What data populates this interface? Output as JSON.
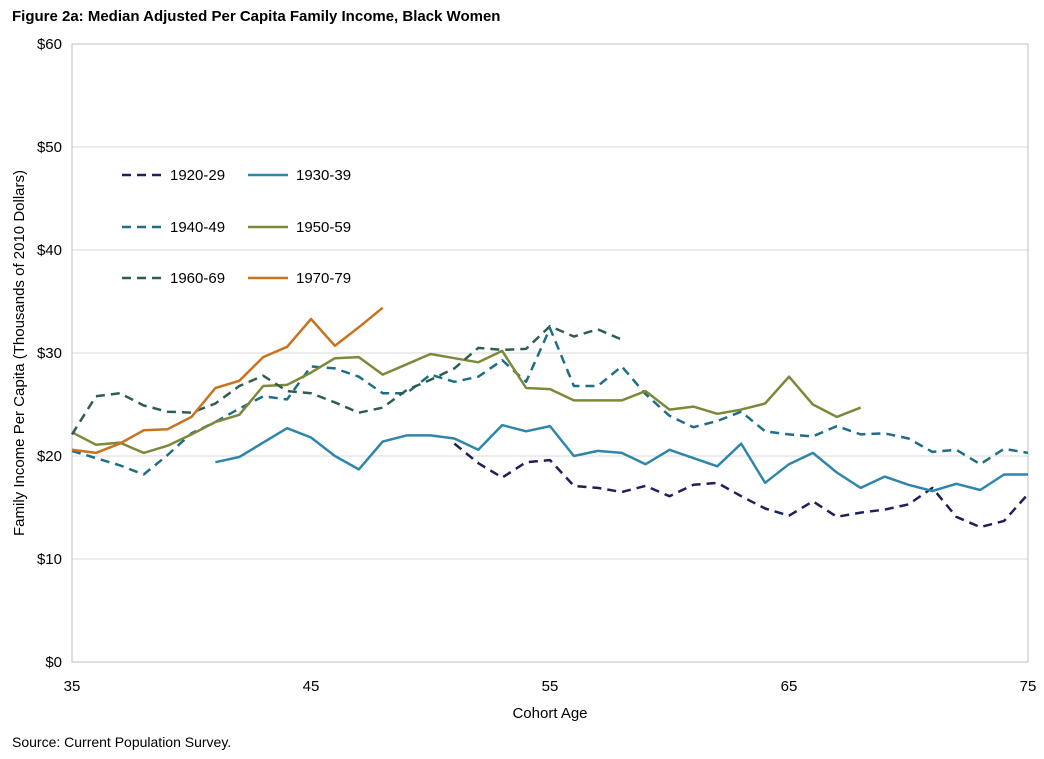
{
  "title": "Figure 2a: Median Adjusted Per Capita Family Income, Black Women",
  "source": "Source: Current Population Survey.",
  "chart_data": {
    "type": "line",
    "xlabel": "Cohort Age",
    "ylabel": "Family Income Per Capita (Thousands of 2010 Dollars)",
    "xlim": [
      35,
      75
    ],
    "ylim": [
      0,
      60
    ],
    "xticks": [
      35,
      45,
      55,
      65,
      75
    ],
    "xtick_labels": [
      "35",
      "45",
      "55",
      "65",
      "75"
    ],
    "yticks": [
      0,
      10,
      20,
      30,
      40,
      50,
      60
    ],
    "ytick_labels": [
      "$0",
      "$10",
      "$20",
      "$30",
      "$40",
      "$50",
      "$60"
    ],
    "grid": "horizontal",
    "legend_position": "top-left",
    "series": [
      {
        "name": "1920-29",
        "color": "#1f1f5c",
        "dash": "dashed",
        "x": [
          51,
          52,
          53,
          54,
          55,
          56,
          57,
          58,
          59,
          60,
          61,
          62,
          63,
          64,
          65,
          66,
          67,
          68,
          69,
          70,
          71,
          72,
          73,
          74,
          75
        ],
        "y": [
          21.2,
          19.3,
          17.9,
          19.4,
          19.6,
          17.1,
          16.9,
          16.5,
          17.1,
          16.1,
          17.2,
          17.4,
          16.1,
          14.9,
          14.2,
          15.6,
          14.1,
          14.5,
          14.8,
          15.3,
          16.9,
          14.1,
          13.1,
          13.7,
          16.3
        ]
      },
      {
        "name": "1930-39",
        "color": "#2e86ab",
        "dash": "solid",
        "x": [
          41,
          42,
          43,
          44,
          45,
          46,
          47,
          48,
          49,
          50,
          51,
          52,
          53,
          54,
          55,
          56,
          57,
          58,
          59,
          60,
          61,
          62,
          63,
          64,
          65,
          66,
          67,
          68,
          69,
          70,
          71,
          72,
          73,
          74,
          75
        ],
        "y": [
          19.4,
          19.9,
          21.3,
          22.7,
          21.8,
          20.0,
          18.7,
          21.4,
          22.0,
          22.0,
          21.7,
          20.6,
          23.0,
          22.4,
          22.9,
          20.0,
          20.5,
          20.3,
          19.2,
          20.6,
          19.8,
          19.0,
          21.2,
          17.4,
          19.2,
          20.3,
          18.4,
          16.9,
          18.0,
          17.2,
          16.6,
          17.3,
          16.7,
          18.2,
          18.2
        ]
      },
      {
        "name": "1940-49",
        "color": "#1e6e86",
        "dash": "dashed",
        "x": [
          35,
          36,
          37,
          38,
          39,
          40,
          41,
          42,
          43,
          44,
          45,
          46,
          47,
          48,
          49,
          50,
          51,
          52,
          53,
          54,
          55,
          56,
          57,
          58,
          59,
          60,
          61,
          62,
          63,
          64,
          65,
          66,
          67,
          68,
          69,
          70,
          71,
          72,
          73,
          74,
          75
        ],
        "y": [
          20.5,
          19.8,
          19.1,
          18.2,
          20.1,
          22.2,
          23.3,
          24.6,
          25.8,
          25.5,
          28.7,
          28.5,
          27.7,
          26.1,
          26.1,
          27.9,
          27.2,
          27.7,
          29.3,
          27.2,
          32.4,
          26.8,
          26.8,
          28.7,
          26.0,
          23.9,
          22.8,
          23.4,
          24.3,
          22.4,
          22.1,
          21.9,
          22.9,
          22.1,
          22.2,
          21.7,
          20.4,
          20.6,
          19.2,
          20.7,
          20.3
        ]
      },
      {
        "name": "1950-59",
        "color": "#7a8a3a",
        "dash": "solid",
        "x": [
          35,
          36,
          37,
          38,
          39,
          40,
          41,
          42,
          43,
          44,
          45,
          46,
          47,
          48,
          49,
          50,
          51,
          52,
          53,
          54,
          55,
          56,
          57,
          58,
          59,
          60,
          61,
          62,
          63,
          64,
          65,
          66,
          67,
          68
        ],
        "y": [
          22.3,
          21.1,
          21.3,
          20.3,
          21.0,
          22.1,
          23.3,
          24.0,
          26.8,
          26.9,
          28.1,
          29.5,
          29.6,
          27.9,
          28.9,
          29.9,
          29.5,
          29.1,
          30.2,
          26.6,
          26.5,
          25.4,
          25.4,
          25.4,
          26.3,
          24.5,
          24.8,
          24.1,
          24.5,
          25.1,
          27.7,
          25.0,
          23.8,
          24.7
        ]
      },
      {
        "name": "1960-69",
        "color": "#2e5e4e",
        "dash": "dashed",
        "x": [
          35,
          36,
          37,
          38,
          39,
          40,
          41,
          42,
          43,
          44,
          45,
          46,
          47,
          48,
          49,
          50,
          51,
          52,
          53,
          54,
          55,
          56,
          57,
          58
        ],
        "y": [
          22.1,
          25.8,
          26.1,
          24.9,
          24.3,
          24.2,
          25.1,
          26.8,
          27.8,
          26.3,
          26.1,
          25.2,
          24.2,
          24.7,
          26.4,
          27.4,
          28.5,
          30.5,
          30.3,
          30.4,
          32.6,
          31.6,
          32.3,
          31.3
        ]
      },
      {
        "name": "1970-79",
        "color": "#c8731f",
        "dash": "solid",
        "x": [
          35,
          36,
          37,
          38,
          39,
          40,
          41,
          42,
          43,
          44,
          45,
          46,
          47,
          48
        ],
        "y": [
          20.6,
          20.3,
          21.2,
          22.5,
          22.6,
          23.8,
          26.6,
          27.3,
          29.6,
          30.6,
          33.3,
          30.7,
          32.5,
          34.4
        ]
      }
    ]
  }
}
